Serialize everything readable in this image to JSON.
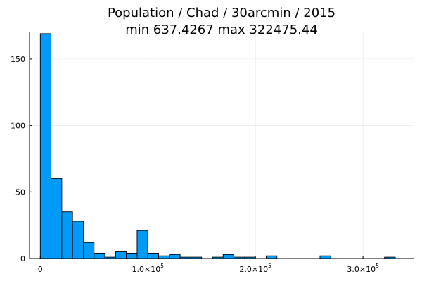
{
  "chart_data": {
    "type": "bar",
    "title_line1": "Population / Chad / 30arcmin / 2015",
    "title_line2": "min 637.4267  max 322475.44",
    "xlabel": "",
    "ylabel": "",
    "bin_width": 10000,
    "bin_start": 0,
    "values": [
      169,
      60,
      35,
      28,
      12,
      4,
      1,
      5,
      4,
      21,
      4,
      2,
      3,
      1,
      1,
      0,
      1,
      3,
      1,
      1,
      0,
      2,
      0,
      0,
      0,
      0,
      2,
      0,
      0,
      0,
      0,
      0,
      1
    ],
    "xlim": [
      -10000,
      347000
    ],
    "ylim": [
      0,
      170
    ],
    "x_ticks": [
      {
        "value": 0,
        "mantissa": "0",
        "exponent": ""
      },
      {
        "value": 100000,
        "mantissa": "1.0×10",
        "exponent": "5"
      },
      {
        "value": 200000,
        "mantissa": "2.0×10",
        "exponent": "5"
      },
      {
        "value": 300000,
        "mantissa": "3.0×10",
        "exponent": "5"
      }
    ],
    "y_ticks": [
      {
        "value": 0,
        "label": "0"
      },
      {
        "value": 50,
        "label": "50"
      },
      {
        "value": 100,
        "label": "100"
      },
      {
        "value": 150,
        "label": "150"
      }
    ],
    "grid": true,
    "legend": "none",
    "bar_color": "#009af9",
    "bar_edge_color": "#000000"
  }
}
